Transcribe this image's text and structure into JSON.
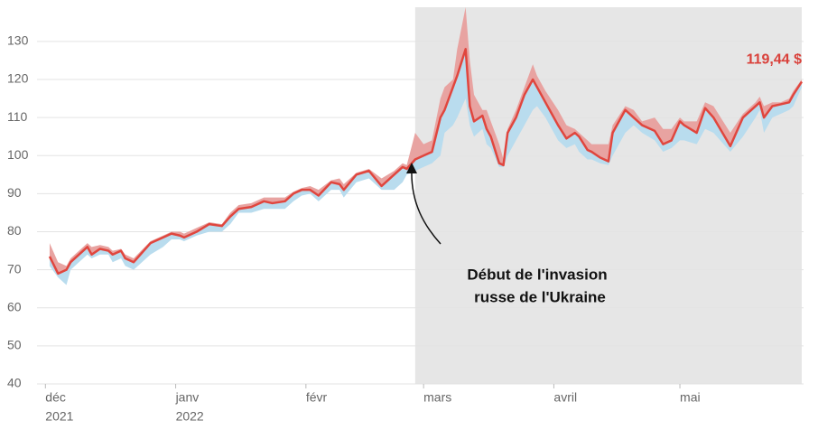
{
  "chart_data": {
    "type": "line",
    "x": [
      1,
      3,
      5,
      6,
      10,
      11,
      13,
      15,
      16,
      18,
      19,
      21,
      25,
      28,
      30,
      32,
      33,
      36,
      39,
      42,
      44,
      46,
      49,
      52,
      54,
      57,
      59,
      61,
      63,
      65,
      68,
      70,
      71,
      74,
      77,
      80,
      83,
      85,
      86,
      88,
      90,
      92,
      94,
      95,
      97,
      98,
      100,
      101,
      102,
      104,
      105,
      106,
      108,
      109,
      110,
      112,
      114,
      116,
      117,
      119,
      122,
      124,
      126,
      127,
      129,
      130,
      132,
      134,
      135,
      138,
      140,
      142,
      145,
      147,
      149,
      151,
      152,
      155,
      157,
      159,
      163,
      166,
      169,
      170,
      171,
      173,
      175,
      177,
      178,
      180
    ],
    "values": [
      73.5,
      69,
      70,
      72,
      76,
      74,
      75.5,
      75,
      74,
      75,
      73,
      72,
      77,
      78.5,
      79.5,
      79,
      78.5,
      80,
      82,
      81.5,
      84,
      86,
      86.5,
      88,
      87.5,
      88,
      90,
      91,
      91,
      89.5,
      93,
      92.5,
      91,
      95,
      96,
      92,
      95,
      97,
      96.5,
      99,
      100,
      101,
      110,
      112,
      118,
      121,
      128,
      113,
      109,
      110.5,
      107,
      105,
      98,
      97.5,
      106,
      110,
      116,
      120,
      118,
      114,
      108,
      104.5,
      106,
      105,
      101.5,
      101,
      99.5,
      98.5,
      106,
      112,
      110,
      108,
      106.5,
      103,
      104,
      109,
      108,
      106,
      112.5,
      110,
      102.5,
      110,
      113,
      114,
      110,
      113,
      113.5,
      114,
      116,
      119.44
    ],
    "value_labels": [
      null,
      null,
      null,
      null,
      null,
      null,
      null,
      null,
      null,
      null,
      null,
      null,
      null,
      null,
      null,
      null,
      null,
      null,
      null,
      null,
      null,
      null,
      null,
      null,
      null,
      null,
      null,
      null,
      null,
      null,
      null,
      null,
      null,
      null,
      null,
      null,
      null,
      null,
      null,
      null,
      null,
      null,
      null,
      null,
      null,
      null,
      null,
      null,
      null,
      null,
      null,
      null,
      null,
      null,
      null,
      null,
      null,
      null,
      null,
      null,
      null,
      null,
      null,
      null,
      null,
      null,
      null,
      null,
      null,
      null,
      null,
      null,
      null,
      null,
      null,
      null,
      null,
      null,
      null,
      null,
      null,
      null,
      null,
      null,
      null,
      null,
      null,
      null,
      null,
      "119,44 $"
    ],
    "high": [
      77,
      72,
      71,
      73,
      77,
      76,
      76.5,
      76,
      75,
      75.5,
      74,
      73,
      77.5,
      79,
      80,
      80,
      79.5,
      81,
      82.5,
      82,
      85,
      87,
      87.5,
      89,
      89,
      89,
      90.5,
      91.5,
      92,
      91,
      93.5,
      94,
      92.5,
      95.5,
      96.5,
      94,
      96,
      98,
      97.5,
      106,
      103,
      104,
      115,
      118,
      120,
      128,
      139,
      125,
      116,
      112,
      112,
      109,
      103,
      99,
      107,
      112,
      118,
      124,
      121,
      117,
      112,
      108,
      107,
      106,
      104,
      103,
      103,
      103,
      108,
      113,
      112,
      109,
      110,
      107,
      107,
      110,
      109,
      109,
      114,
      113,
      106,
      111,
      114,
      115.5,
      113,
      114,
      114,
      115,
      117,
      120
    ],
    "low": [
      71,
      68,
      66,
      70,
      74,
      73,
      74,
      74,
      72,
      73,
      71,
      70,
      74,
      76,
      78,
      78,
      77.5,
      79,
      80,
      80,
      82,
      85,
      85,
      86,
      86,
      86,
      88,
      89.5,
      90,
      88,
      91,
      91,
      89,
      93,
      94,
      91,
      91,
      93,
      95,
      96,
      97,
      98,
      100,
      106,
      108,
      110,
      115,
      108,
      105,
      107,
      103,
      102,
      97,
      97,
      100,
      104,
      108,
      112,
      113,
      110,
      104,
      102,
      103,
      101,
      99,
      99,
      98,
      97.5,
      100,
      106,
      108,
      106,
      104,
      101,
      102,
      104,
      104,
      103,
      107,
      106,
      101,
      105,
      110,
      112,
      106,
      110,
      111,
      112,
      113,
      118
    ],
    "color": "#e0463e",
    "high_color": "#e8a3a1",
    "low_color": "#b9dcee",
    "xlim": [
      -2,
      180
    ],
    "ylim": [
      40,
      139
    ],
    "yticks": [
      40,
      50,
      60,
      70,
      80,
      90,
      100,
      110,
      120,
      130
    ],
    "xticks": [
      {
        "value": 0,
        "label": "déc"
      },
      {
        "value": 31,
        "label": "janv"
      },
      {
        "value": 62,
        "label": "févr"
      },
      {
        "value": 90,
        "label": "mars"
      },
      {
        "value": 121,
        "label": "avril"
      },
      {
        "value": 151,
        "label": "mai"
      }
    ],
    "x_year_labels": [
      {
        "value": 0,
        "label": "2021"
      },
      {
        "value": 31,
        "label": "2022"
      }
    ],
    "shade_x": [
      88,
      180
    ],
    "shade_color": "#e6e6e6",
    "annotation": [
      "Début de l'invasion",
      "russe de l'Ukraine"
    ],
    "grid": true
  }
}
